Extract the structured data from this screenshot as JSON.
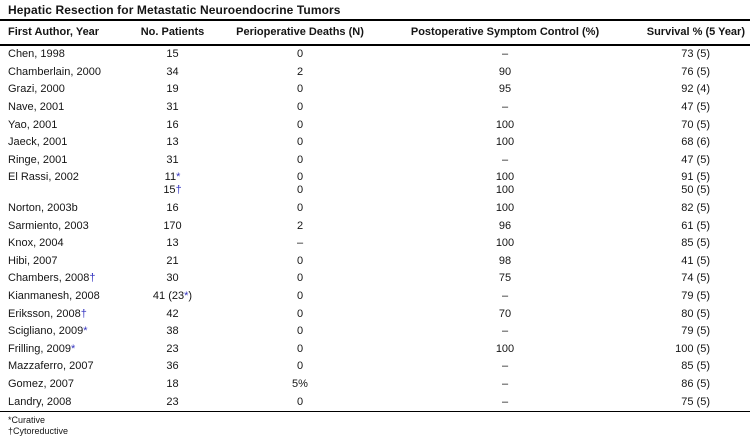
{
  "title": "Hepatic Resection for Metastatic Neuroendocrine Tumors",
  "marker_color": "#3535c0",
  "table": {
    "columns": [
      "First Author, Year",
      "No. Patients",
      "Perioperative Deaths (N)",
      "Postoperative Symptom Control (%)",
      "Survival % (5 Year)"
    ],
    "rows": [
      [
        [
          [
            "Chen, 1998"
          ]
        ],
        [
          [
            "15"
          ]
        ],
        [
          [
            "0"
          ]
        ],
        [
          [
            "–"
          ]
        ],
        [
          [
            "73 (5)"
          ]
        ]
      ],
      [
        [
          [
            "Chamberlain, 2000"
          ]
        ],
        [
          [
            "34"
          ]
        ],
        [
          [
            "2"
          ]
        ],
        [
          [
            "90"
          ]
        ],
        [
          [
            "76 (5)"
          ]
        ]
      ],
      [
        [
          [
            "Grazi, 2000"
          ]
        ],
        [
          [
            "19"
          ]
        ],
        [
          [
            "0"
          ]
        ],
        [
          [
            "95"
          ]
        ],
        [
          [
            "92 (4)"
          ]
        ]
      ],
      [
        [
          [
            "Nave, 2001"
          ]
        ],
        [
          [
            "31"
          ]
        ],
        [
          [
            "0"
          ]
        ],
        [
          [
            "–"
          ]
        ],
        [
          [
            "47 (5)"
          ]
        ]
      ],
      [
        [
          [
            "Yao, 2001"
          ]
        ],
        [
          [
            "16"
          ]
        ],
        [
          [
            "0"
          ]
        ],
        [
          [
            "100"
          ]
        ],
        [
          [
            "70 (5)"
          ]
        ]
      ],
      [
        [
          [
            "Jaeck, 2001"
          ]
        ],
        [
          [
            "13"
          ]
        ],
        [
          [
            "0"
          ]
        ],
        [
          [
            "100"
          ]
        ],
        [
          [
            "68 (6)"
          ]
        ]
      ],
      [
        [
          [
            "Ringe, 2001"
          ]
        ],
        [
          [
            "31"
          ]
        ],
        [
          [
            "0"
          ]
        ],
        [
          [
            "–"
          ]
        ],
        [
          [
            "47 (5)"
          ]
        ]
      ],
      [
        [
          [
            "El Rassi, 2002"
          ]
        ],
        [
          [
            "11",
            {
              "m": "*"
            }
          ],
          [
            "15",
            {
              "m": "†"
            }
          ]
        ],
        [
          [
            "0"
          ],
          [
            "0"
          ]
        ],
        [
          [
            "100"
          ],
          [
            "100"
          ]
        ],
        [
          [
            "91 (5)"
          ],
          [
            "50 (5)"
          ]
        ]
      ],
      [
        [
          [
            "Norton, 2003b"
          ]
        ],
        [
          [
            "16"
          ]
        ],
        [
          [
            "0"
          ]
        ],
        [
          [
            "100"
          ]
        ],
        [
          [
            "82 (5)"
          ]
        ]
      ],
      [
        [
          [
            "Sarmiento, 2003"
          ]
        ],
        [
          [
            "170"
          ]
        ],
        [
          [
            "2"
          ]
        ],
        [
          [
            "96"
          ]
        ],
        [
          [
            "61 (5)"
          ]
        ]
      ],
      [
        [
          [
            "Knox, 2004"
          ]
        ],
        [
          [
            "13"
          ]
        ],
        [
          [
            "–"
          ]
        ],
        [
          [
            "100"
          ]
        ],
        [
          [
            "85 (5)"
          ]
        ]
      ],
      [
        [
          [
            "Hibi, 2007"
          ]
        ],
        [
          [
            "21"
          ]
        ],
        [
          [
            "0"
          ]
        ],
        [
          [
            "98"
          ]
        ],
        [
          [
            "41 (5)"
          ]
        ]
      ],
      [
        [
          [
            "Chambers, 2008",
            {
              "m": "†"
            }
          ]
        ],
        [
          [
            "30"
          ]
        ],
        [
          [
            "0"
          ]
        ],
        [
          [
            "75"
          ]
        ],
        [
          [
            "74 (5)"
          ]
        ]
      ],
      [
        [
          [
            "Kianmanesh, 2008"
          ]
        ],
        [
          [
            "41 (23",
            {
              "m": "*"
            },
            ")"
          ]
        ],
        [
          [
            "0"
          ]
        ],
        [
          [
            "–"
          ]
        ],
        [
          [
            "79 (5)"
          ]
        ]
      ],
      [
        [
          [
            "Eriksson, 2008",
            {
              "m": "†"
            }
          ]
        ],
        [
          [
            "42"
          ]
        ],
        [
          [
            "0"
          ]
        ],
        [
          [
            "70"
          ]
        ],
        [
          [
            "80 (5)"
          ]
        ]
      ],
      [
        [
          [
            "Scigliano, 2009",
            {
              "m": "*"
            }
          ]
        ],
        [
          [
            "38"
          ]
        ],
        [
          [
            "0"
          ]
        ],
        [
          [
            "–"
          ]
        ],
        [
          [
            "79 (5)"
          ]
        ]
      ],
      [
        [
          [
            "Frilling, 2009",
            {
              "m": "*"
            }
          ]
        ],
        [
          [
            "23"
          ]
        ],
        [
          [
            "0"
          ]
        ],
        [
          [
            "100"
          ]
        ],
        [
          [
            "100 (5)"
          ]
        ]
      ],
      [
        [
          [
            "Mazzaferro, 2007"
          ]
        ],
        [
          [
            "36"
          ]
        ],
        [
          [
            "0"
          ]
        ],
        [
          [
            "–"
          ]
        ],
        [
          [
            "85 (5)"
          ]
        ]
      ],
      [
        [
          [
            "Gomez, 2007"
          ]
        ],
        [
          [
            "18"
          ]
        ],
        [
          [
            "5%"
          ]
        ],
        [
          [
            "–"
          ]
        ],
        [
          [
            "86 (5)"
          ]
        ]
      ],
      [
        [
          [
            "Landry, 2008"
          ]
        ],
        [
          [
            "23"
          ]
        ],
        [
          [
            "0"
          ]
        ],
        [
          [
            "–"
          ]
        ],
        [
          [
            "75 (5)"
          ]
        ]
      ]
    ]
  },
  "footnotes": [
    "*Curative",
    "†Cytoreductive"
  ]
}
